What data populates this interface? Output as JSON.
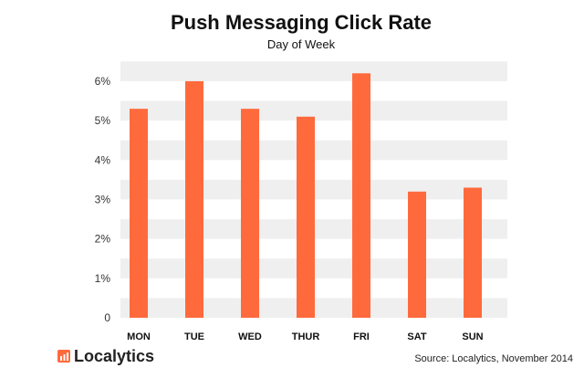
{
  "brand": {
    "name": "Localytics",
    "accent": "#FF6A3D",
    "icon": "localytics-bar-logo-icon"
  },
  "source_note": "Source: Localytics, November 2014",
  "colors": {
    "bar": "#FF6A3D",
    "band": "#EFEFEF"
  },
  "chart_data": {
    "type": "bar",
    "title": "Push Messaging Click Rate",
    "subtitle": "Day of Week",
    "xlabel": "",
    "ylabel": "",
    "categories": [
      "MON",
      "TUE",
      "WED",
      "THUR",
      "FRI",
      "SAT",
      "SUN"
    ],
    "values": [
      5.3,
      6.0,
      5.3,
      5.1,
      6.2,
      3.2,
      3.3
    ],
    "ylim": [
      0,
      6.6
    ],
    "yticks": [
      0,
      1,
      2,
      3,
      4,
      5,
      6
    ],
    "ytick_labels": [
      "0",
      "1%",
      "2%",
      "3%",
      "4%",
      "5%",
      "6%"
    ],
    "grid": "alternating horizontal bands",
    "legend": "none"
  }
}
